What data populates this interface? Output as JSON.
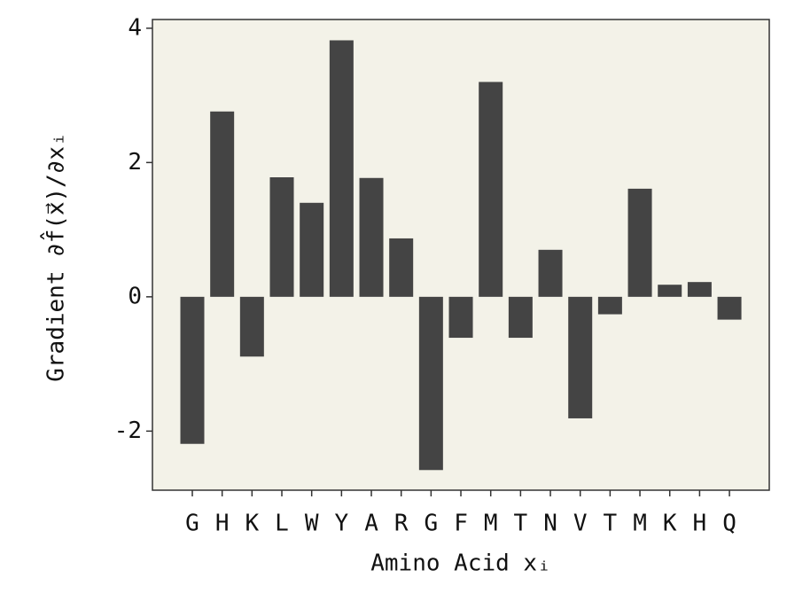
{
  "chart_data": {
    "type": "bar",
    "x_label": "Amino Acid xᵢ",
    "y_label": "Gradient ∂f̂(x⃗)/∂xᵢ",
    "categories": [
      "G",
      "H",
      "K",
      "L",
      "W",
      "Y",
      "A",
      "R",
      "G",
      "F",
      "M",
      "T",
      "N",
      "V",
      "T",
      "M",
      "K",
      "H",
      "Q"
    ],
    "values": [
      -2.19,
      2.76,
      -0.89,
      1.78,
      1.4,
      3.82,
      1.77,
      0.87,
      -2.58,
      -0.61,
      3.2,
      -0.61,
      0.7,
      -1.81,
      -0.26,
      1.61,
      0.18,
      0.22,
      -0.34
    ],
    "color": "#444444",
    "background": "#f3f2e8",
    "ylim": [
      -2.88,
      4.13
    ],
    "yticks": [
      {
        "value": -2,
        "label": "-2"
      },
      0,
      2,
      4
    ],
    "grid": false
  }
}
